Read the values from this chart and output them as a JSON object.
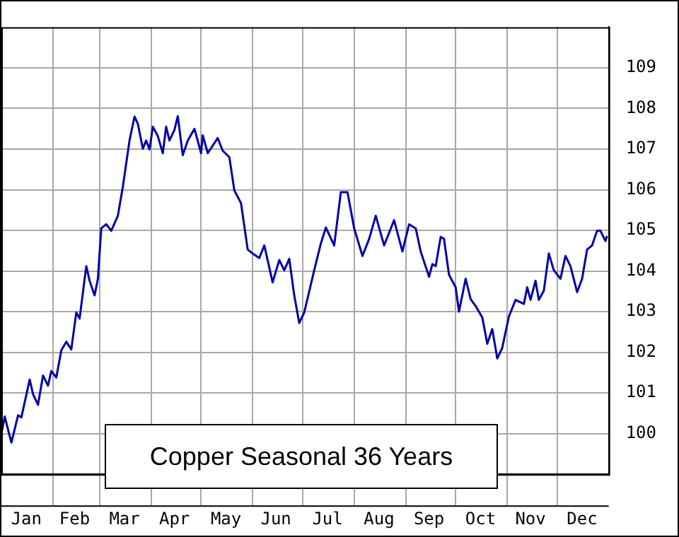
{
  "chart_data": {
    "type": "line",
    "title": "Copper Seasonal 36 Years",
    "x": [
      "--01-01",
      "--01-03",
      "--01-07",
      "--01-11",
      "--01-13",
      "--01-18",
      "--01-20",
      "--01-23",
      "--01-26",
      "--01-29",
      "--01-31",
      "--02-03",
      "--02-06",
      "--02-09",
      "--02-12",
      "--02-15",
      "--02-17",
      "--02-21",
      "--02-23",
      "--02-26",
      "--02-28",
      "--03-02",
      "--03-05",
      "--03-08",
      "--03-12",
      "--03-15",
      "--03-19",
      "--03-22",
      "--03-24",
      "--03-27",
      "--03-29",
      "--03-31",
      "--04-02",
      "--04-05",
      "--04-08",
      "--04-10",
      "--04-12",
      "--04-15",
      "--04-17",
      "--04-20",
      "--04-23",
      "--04-27",
      "--05-01",
      "--05-02",
      "--05-05",
      "--05-11",
      "--05-14",
      "--05-18",
      "--05-21",
      "--05-25",
      "--05-29",
      "--06-01",
      "--06-05",
      "--06-08",
      "--06-13",
      "--06-17",
      "--06-20",
      "--06-23",
      "--06-26",
      "--06-29",
      "--07-02",
      "--07-08",
      "--07-12",
      "--07-15",
      "--07-20",
      "--07-24",
      "--07-28",
      "--08-01",
      "--08-06",
      "--08-10",
      "--08-14",
      "--08-19",
      "--08-25",
      "--08-30",
      "--09-03",
      "--09-07",
      "--09-10",
      "--09-15",
      "--09-17",
      "--09-19",
      "--09-22",
      "--09-24",
      "--09-27",
      "--10-01",
      "--10-03",
      "--10-07",
      "--10-10",
      "--10-13",
      "--10-17",
      "--10-20",
      "--10-23",
      "--10-26",
      "--10-29",
      "--11-02",
      "--11-06",
      "--11-11",
      "--11-13",
      "--11-15",
      "--11-18",
      "--11-20",
      "--11-23",
      "--11-26",
      "--11-29",
      "--12-03",
      "--12-06",
      "--12-09",
      "--12-13",
      "--12-16",
      "--12-19",
      "--12-22",
      "--12-25",
      "--12-27",
      "--12-30",
      "--12-31"
    ],
    "series": [
      {
        "color": "#0000aa",
        "values": [
          100.0,
          100.42,
          99.78,
          100.45,
          100.4,
          101.33,
          100.97,
          100.71,
          101.43,
          101.18,
          101.54,
          101.38,
          102.05,
          102.26,
          102.07,
          102.98,
          102.83,
          104.12,
          103.76,
          103.4,
          103.81,
          105.05,
          105.15,
          104.99,
          105.36,
          106.08,
          107.21,
          107.8,
          107.62,
          107.01,
          107.21,
          106.99,
          107.55,
          107.32,
          106.9,
          107.55,
          107.21,
          107.47,
          107.81,
          106.85,
          107.21,
          107.5,
          106.9,
          107.34,
          106.9,
          107.27,
          106.96,
          106.8,
          105.98,
          105.67,
          104.53,
          104.43,
          104.32,
          104.63,
          103.72,
          104.27,
          104.02,
          104.3,
          103.4,
          102.72,
          102.98,
          104.02,
          104.68,
          105.07,
          104.63,
          105.94,
          105.94,
          105.05,
          104.37,
          104.79,
          105.36,
          104.63,
          105.25,
          104.48,
          105.15,
          105.05,
          104.48,
          103.86,
          104.17,
          104.12,
          104.84,
          104.79,
          103.91,
          103.6,
          103.0,
          103.81,
          103.31,
          103.14,
          102.86,
          102.21,
          102.57,
          101.85,
          102.11,
          102.88,
          103.29,
          103.19,
          103.6,
          103.29,
          103.76,
          103.29,
          103.52,
          104.43,
          104.02,
          103.81,
          104.37,
          104.12,
          103.48,
          103.81,
          104.53,
          104.63,
          104.99,
          104.99,
          104.74,
          104.86
        ]
      }
    ],
    "xlim": [
      "--01-01",
      "--12-31"
    ],
    "xticks": [
      {
        "value": "--01-16",
        "label": "Jan"
      },
      {
        "value": "--02-01",
        "label": null
      },
      {
        "value": "--02-14",
        "label": "Feb"
      },
      {
        "value": "--03-01",
        "label": null
      },
      {
        "value": "--03-16",
        "label": "Mar"
      },
      {
        "value": "--04-01",
        "label": null
      },
      {
        "value": "--04-15",
        "label": "Apr"
      },
      {
        "value": "--05-01",
        "label": null
      },
      {
        "value": "--05-16",
        "label": "May"
      },
      {
        "value": "--06-01",
        "label": null
      },
      {
        "value": "--06-15",
        "label": "Jun"
      },
      {
        "value": "--07-01",
        "label": null
      },
      {
        "value": "--07-16",
        "label": "Jul"
      },
      {
        "value": "--08-01",
        "label": null
      },
      {
        "value": "--08-16",
        "label": "Aug"
      },
      {
        "value": "--09-01",
        "label": null
      },
      {
        "value": "--09-15",
        "label": "Sep"
      },
      {
        "value": "--10-01",
        "label": null
      },
      {
        "value": "--10-16",
        "label": "Oct"
      },
      {
        "value": "--11-01",
        "label": null
      },
      {
        "value": "--11-15",
        "label": "Nov"
      },
      {
        "value": "--12-01",
        "label": null
      },
      {
        "value": "--12-16",
        "label": "Dec"
      }
    ],
    "ylim": [
      99,
      110
    ],
    "yticks": [
      100,
      101,
      102,
      103,
      104,
      105,
      106,
      107,
      108,
      109
    ],
    "grid": true,
    "marker": "none",
    "line_style": "solid"
  }
}
